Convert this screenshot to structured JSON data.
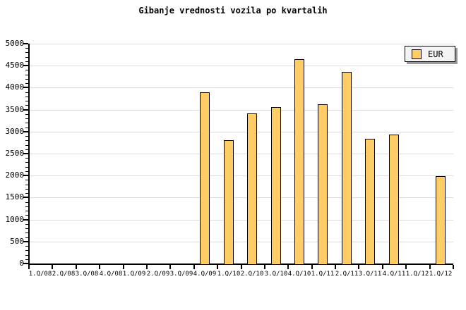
{
  "colors": {
    "bar_fill": "#FFCC66",
    "bar_border": "#000000",
    "grid": "#DCDCDC",
    "axis": "#000000",
    "background": "#FFFFFF",
    "legend_bg": "#F4F4F4",
    "legend_shadow": "#999999"
  },
  "legend": {
    "label": "EUR"
  },
  "chart_data": {
    "type": "bar",
    "title": "Gibanje vrednosti vozila po kvartalih",
    "categories": [
      "1.Q/08",
      "2.Q/08",
      "3.Q/08",
      "4.Q/08",
      "1.Q/09",
      "2.Q/09",
      "3.Q/09",
      "4.Q/09",
      "1.Q/10",
      "2.Q/10",
      "3.Q/10",
      "4.Q/10",
      "1.Q/11",
      "2.Q/11",
      "3.Q/11",
      "4.Q/11",
      "1.Q/12",
      "1.Q/12"
    ],
    "series": [
      {
        "name": "EUR",
        "values": [
          null,
          null,
          null,
          null,
          null,
          null,
          null,
          3900,
          2810,
          3420,
          3550,
          4650,
          3620,
          4360,
          2830,
          2940,
          null,
          1980
        ]
      }
    ],
    "xlabel": "",
    "ylabel": "",
    "ylim": [
      0,
      5000
    ],
    "yticks": [
      0,
      500,
      1000,
      1500,
      2000,
      2500,
      3000,
      3500,
      4000,
      4500,
      5000
    ],
    "ytick_step": 500,
    "ytick_minor_step": 100,
    "grid": "horizontal-major",
    "legend_position": "top-right"
  }
}
